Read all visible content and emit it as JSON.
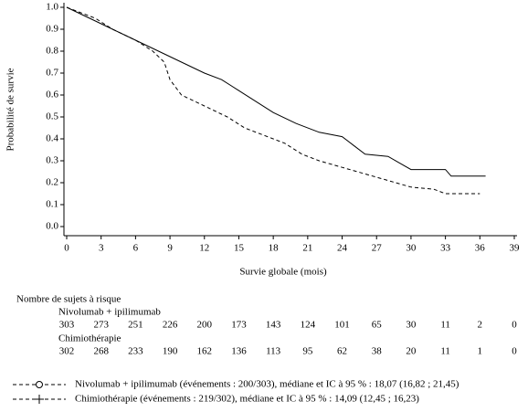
{
  "chart_data": {
    "type": "line",
    "x_label": "Survie globale (mois)",
    "y_label": "Probabilité de survie",
    "xlim": [
      0,
      39
    ],
    "xticks": [
      0,
      3,
      6,
      9,
      12,
      15,
      18,
      21,
      24,
      27,
      30,
      33,
      36,
      39
    ],
    "ylim": [
      0,
      1
    ],
    "yticks": [
      {
        "value": 0,
        "label": "0.0"
      },
      0.1,
      0.2,
      0.3,
      0.4,
      0.5,
      0.6,
      0.7,
      0.8,
      0.9,
      {
        "value": 1,
        "label": "1.0"
      }
    ],
    "series": [
      {
        "name": "Nivolumab + ipilimumab (événements : 200/303), médiane et IC à 95 % : 18,07 (16,82 ; 21,45)",
        "color": "#000000",
        "line_style": "solid",
        "marker": "circle",
        "x": [
          0,
          2,
          4,
          6,
          8,
          10,
          12,
          13.5,
          15,
          16.5,
          18,
          20,
          22,
          24,
          25,
          26,
          28,
          29,
          30,
          33,
          33.5,
          36.5
        ],
        "values": [
          1.0,
          0.95,
          0.9,
          0.85,
          0.8,
          0.75,
          0.7,
          0.67,
          0.62,
          0.57,
          0.52,
          0.47,
          0.43,
          0.41,
          0.37,
          0.33,
          0.32,
          0.29,
          0.26,
          0.26,
          0.23,
          0.23
        ]
      },
      {
        "name": "Chimiothérapie (événements : 219/302), médiane et IC à 95 % : 14,09 (12,45 ; 16,23)",
        "color": "#000000",
        "line_style": "dashed",
        "marker": "plus",
        "x": [
          0,
          2.5,
          4,
          6,
          7.5,
          8.5,
          9,
          10,
          12,
          14,
          15.5,
          17,
          19,
          20.5,
          22,
          24,
          26,
          28,
          30,
          32,
          33,
          36
        ],
        "values": [
          1.0,
          0.95,
          0.9,
          0.85,
          0.8,
          0.75,
          0.67,
          0.6,
          0.55,
          0.5,
          0.45,
          0.42,
          0.38,
          0.33,
          0.3,
          0.27,
          0.24,
          0.21,
          0.18,
          0.17,
          0.15,
          0.15
        ]
      }
    ],
    "risk_table": {
      "title": "Nombre de sujets à risque",
      "groups": [
        {
          "label": "Nivolumab + ipilimumab",
          "counts": [
            303,
            273,
            251,
            226,
            200,
            173,
            143,
            124,
            101,
            65,
            30,
            11,
            2,
            0
          ]
        },
        {
          "label": "Chimiothérapie",
          "counts": [
            302,
            268,
            233,
            190,
            162,
            136,
            113,
            95,
            62,
            38,
            20,
            11,
            1,
            0
          ]
        }
      ]
    }
  }
}
